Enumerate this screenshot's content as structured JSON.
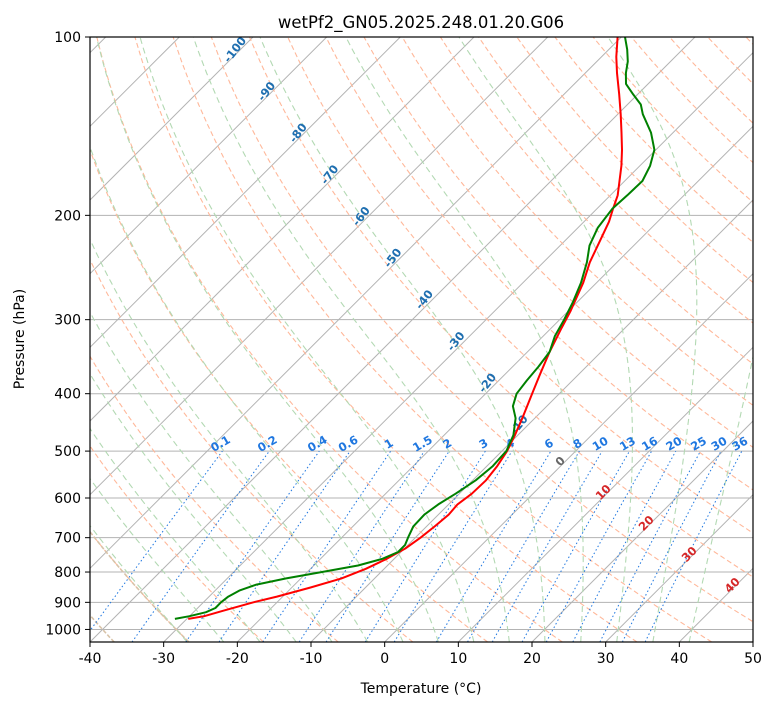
{
  "chart_data": {
    "type": "skew-t",
    "title": "wetPf2_GN05.2025.248.01.20.G06",
    "xlabel": "Temperature (°C)",
    "ylabel": "Pressure (hPa)",
    "xlim": [
      -40,
      50
    ],
    "ylim": [
      1000,
      100
    ],
    "x_scale": "linear",
    "y_scale": "log",
    "x_ticks": [
      "-40",
      "-30",
      "-20",
      "-10",
      "0",
      "10",
      "20",
      "30",
      "40",
      "50"
    ],
    "y_ticks": [
      "100",
      "200",
      "300",
      "400",
      "500",
      "600",
      "700",
      "800",
      "900",
      "1000"
    ],
    "grid": true,
    "series": [
      {
        "key": "temperature",
        "color": "#ff0000",
        "points": [
          {
            "p": 960,
            "t": -29.8
          },
          {
            "p": 950,
            "t": -28.0
          },
          {
            "p": 930,
            "t": -26.2
          },
          {
            "p": 900,
            "t": -23.2
          },
          {
            "p": 880,
            "t": -20.8
          },
          {
            "p": 850,
            "t": -17.5
          },
          {
            "p": 820,
            "t": -14.5
          },
          {
            "p": 790,
            "t": -12.5
          },
          {
            "p": 760,
            "t": -11.0
          },
          {
            "p": 730,
            "t": -9.9
          },
          {
            "p": 700,
            "t": -9.3
          },
          {
            "p": 670,
            "t": -8.9
          },
          {
            "p": 640,
            "t": -8.6
          },
          {
            "p": 615,
            "t": -8.8
          },
          {
            "p": 590,
            "t": -8.3
          },
          {
            "p": 560,
            "t": -8.2
          },
          {
            "p": 530,
            "t": -8.6
          },
          {
            "p": 500,
            "t": -9.3
          },
          {
            "p": 470,
            "t": -10.4
          },
          {
            "p": 440,
            "t": -11.7
          },
          {
            "p": 400,
            "t": -13.7
          },
          {
            "p": 370,
            "t": -15.3
          },
          {
            "p": 340,
            "t": -17.0
          },
          {
            "p": 310,
            "t": -18.6
          },
          {
            "p": 290,
            "t": -19.7
          },
          {
            "p": 260,
            "t": -21.8
          },
          {
            "p": 240,
            "t": -23.7
          },
          {
            "p": 220,
            "t": -25.3
          },
          {
            "p": 205,
            "t": -26.6
          },
          {
            "p": 195,
            "t": -27.8
          },
          {
            "p": 185,
            "t": -29.0
          },
          {
            "p": 175,
            "t": -30.7
          },
          {
            "p": 165,
            "t": -32.5
          },
          {
            "p": 155,
            "t": -34.6
          },
          {
            "p": 145,
            "t": -37.0
          },
          {
            "p": 135,
            "t": -39.6
          },
          {
            "p": 125,
            "t": -42.5
          },
          {
            "p": 115,
            "t": -45.7
          },
          {
            "p": 108,
            "t": -48.0
          },
          {
            "p": 100,
            "t": -50.5
          }
        ]
      },
      {
        "key": "dewpoint",
        "color": "#008000",
        "points": [
          {
            "p": 960,
            "t": -31.6
          },
          {
            "p": 950,
            "t": -30.0
          },
          {
            "p": 935,
            "t": -28.3
          },
          {
            "p": 920,
            "t": -27.6
          },
          {
            "p": 900,
            "t": -27.6
          },
          {
            "p": 880,
            "t": -27.4
          },
          {
            "p": 860,
            "t": -26.7
          },
          {
            "p": 840,
            "t": -25.2
          },
          {
            "p": 820,
            "t": -22.0
          },
          {
            "p": 800,
            "t": -18.0
          },
          {
            "p": 780,
            "t": -14.0
          },
          {
            "p": 760,
            "t": -11.6
          },
          {
            "p": 740,
            "t": -10.4
          },
          {
            "p": 720,
            "t": -10.4
          },
          {
            "p": 700,
            "t": -11.0
          },
          {
            "p": 670,
            "t": -11.8
          },
          {
            "p": 640,
            "t": -11.9
          },
          {
            "p": 615,
            "t": -11.4
          },
          {
            "p": 590,
            "t": -10.5
          },
          {
            "p": 560,
            "t": -9.6
          },
          {
            "p": 530,
            "t": -9.2
          },
          {
            "p": 500,
            "t": -9.4
          },
          {
            "p": 470,
            "t": -10.6
          },
          {
            "p": 440,
            "t": -12.6
          },
          {
            "p": 420,
            "t": -14.6
          },
          {
            "p": 400,
            "t": -15.8
          },
          {
            "p": 380,
            "t": -16.2
          },
          {
            "p": 360,
            "t": -16.5
          },
          {
            "p": 340,
            "t": -17.0
          },
          {
            "p": 320,
            "t": -18.4
          },
          {
            "p": 300,
            "t": -19.4
          },
          {
            "p": 280,
            "t": -20.6
          },
          {
            "p": 260,
            "t": -22.1
          },
          {
            "p": 240,
            "t": -24.1
          },
          {
            "p": 225,
            "t": -26.0
          },
          {
            "p": 210,
            "t": -27.3
          },
          {
            "p": 195,
            "t": -27.9
          },
          {
            "p": 185,
            "t": -27.7
          },
          {
            "p": 175,
            "t": -27.6
          },
          {
            "p": 165,
            "t": -28.6
          },
          {
            "p": 155,
            "t": -30.2
          },
          {
            "p": 145,
            "t": -33.0
          },
          {
            "p": 135,
            "t": -36.6
          },
          {
            "p": 130,
            "t": -38.2
          },
          {
            "p": 125,
            "t": -40.6
          },
          {
            "p": 120,
            "t": -43.0
          },
          {
            "p": 115,
            "t": -44.5
          },
          {
            "p": 110,
            "t": -45.8
          },
          {
            "p": 105,
            "t": -47.5
          },
          {
            "p": 100,
            "t": -49.5
          }
        ]
      }
    ],
    "skew_factor": 1.0,
    "background_lines": {
      "isotherm_color": "#b3b3b3",
      "dry_adiabat_color": "#ffb89a",
      "moist_adiabat_color": "#b3d9b3",
      "mixing_ratio_color": "#1f77e0",
      "top_adiabat_color": "#d8c3a8",
      "moist_label_color": "#1f6fb0",
      "dry_label_color": "#d62728"
    },
    "moist_adiabat_labels": [
      "-100",
      "-90",
      "-80",
      "-70",
      "-60",
      "-50",
      "-40",
      "-30",
      "-20",
      "-10"
    ],
    "mixing_ratio_labels": [
      "0.1",
      "0.2",
      "0.4",
      "0.6",
      "1",
      "1.5",
      "2",
      "3",
      "4",
      "6",
      "8",
      "10",
      "13",
      "16",
      "20",
      "25",
      "30",
      "36"
    ],
    "dry_adiabat_labels": [
      "0",
      "10",
      "20",
      "30",
      "40"
    ]
  }
}
